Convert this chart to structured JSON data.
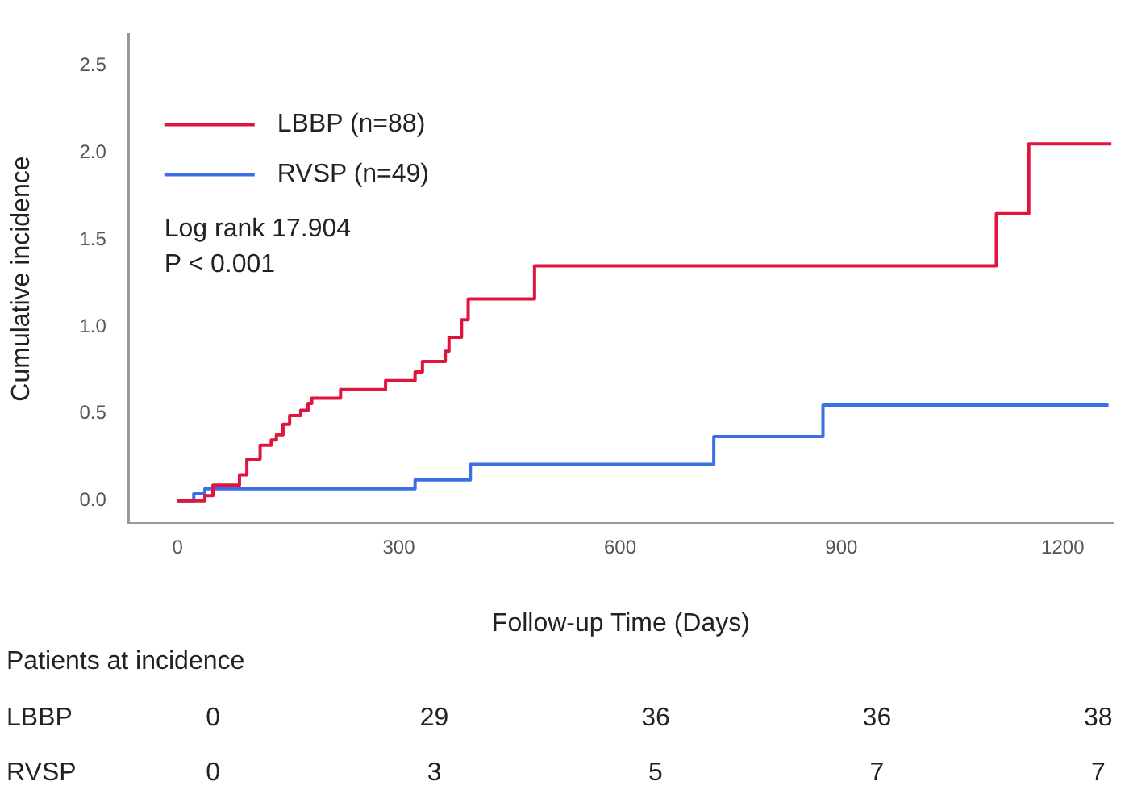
{
  "chart_data": {
    "type": "step",
    "xlabel": "Follow-up Time (Days)",
    "ylabel": "Cumulative incidence",
    "xlim": [
      -66,
      1268
    ],
    "xticks": [
      0,
      300,
      600,
      900,
      1200
    ],
    "ylim": [
      -0.13,
      2.68
    ],
    "yticks": [
      {
        "value": 0,
        "label": "0.0"
      },
      0.5,
      {
        "value": 1,
        "label": "1.0"
      },
      1.5,
      {
        "value": 2,
        "label": "2.0"
      },
      2.5
    ],
    "grid": false,
    "legend": "top left",
    "marker": "none",
    "line_style": "solid",
    "series": [
      {
        "name": "LBBP (n=88)",
        "color": "#e0143c",
        "x": [
          0,
          37,
          48,
          84,
          94,
          112,
          127,
          134,
          143,
          152,
          167,
          177,
          182,
          221,
          282,
          322,
          332,
          363,
          368,
          385,
          394,
          484,
          1110,
          1154,
          1266
        ],
        "values": [
          0,
          0.03,
          0.09,
          0.15,
          0.24,
          0.32,
          0.35,
          0.38,
          0.44,
          0.49,
          0.52,
          0.56,
          0.59,
          0.64,
          0.69,
          0.74,
          0.8,
          0.86,
          0.94,
          1.04,
          1.16,
          1.35,
          1.65,
          2.05,
          2.05
        ]
      },
      {
        "name": "RVSP (n=49)",
        "color": "#3a6fe8",
        "x": [
          0,
          22,
          37,
          322,
          397,
          727,
          875,
          1262
        ],
        "values": [
          0,
          0.04,
          0.07,
          0.12,
          0.21,
          0.37,
          0.55,
          0.55
        ]
      }
    ],
    "annotations": [
      "Log rank 17.904",
      "P < 0.001",
      "Patients at incidence",
      "LBBP 0 29 36 36 38",
      "RVSP 0 3 5 7 7"
    ]
  }
}
